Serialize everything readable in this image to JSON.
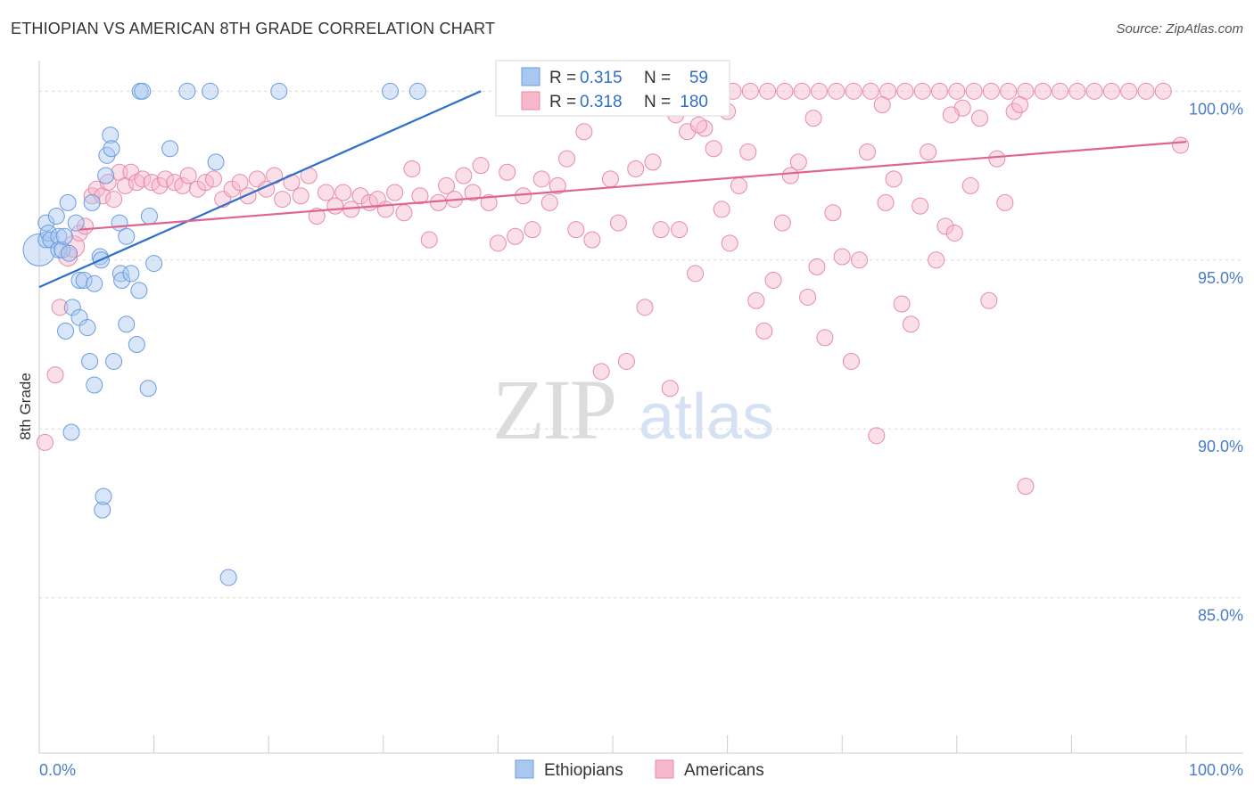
{
  "title": "ETHIOPIAN VS AMERICAN 8TH GRADE CORRELATION CHART",
  "source": "Source: ZipAtlas.com",
  "watermark": {
    "zip": "ZIP",
    "atlas": "atlas"
  },
  "colors": {
    "blue_fill": "#a9c8f0",
    "blue_stroke": "#6b9be0",
    "blue_line": "#2e6fcc",
    "pink_fill": "#f7b8cc",
    "pink_stroke": "#e88aa8",
    "pink_line": "#e0648f",
    "axis_label": "#4a7cc9",
    "grid": "#d9d9d9"
  },
  "legend_box": {
    "rows": [
      {
        "r_label": "R = ",
        "r_value": "0.315",
        "n_label": "N = ",
        "n_value": "59",
        "color": "blue"
      },
      {
        "r_label": "R = ",
        "r_value": "0.318",
        "n_label": "N = ",
        "n_value": "180",
        "color": "pink"
      }
    ]
  },
  "chart_data": {
    "type": "scatter",
    "title": "ETHIOPIAN VS AMERICAN 8TH GRADE CORRELATION CHART",
    "xlabel": "",
    "ylabel": "8th Grade",
    "xlim": [
      0,
      100
    ],
    "ylim": [
      80.4,
      100.8
    ],
    "x_tick_labels": [
      "0.0%",
      "100.0%"
    ],
    "y_ticks": [
      85,
      90,
      95,
      100
    ],
    "y_tick_labels": [
      "85.0%",
      "90.0%",
      "95.0%",
      "100.0%"
    ],
    "grid": true,
    "legend_position": "bottom-center",
    "series": [
      {
        "name": "Ethiopians",
        "color": "blue",
        "r": 0.315,
        "n": 59,
        "trend": {
          "x": [
            0,
            38.5
          ],
          "y": [
            94.2,
            100.0
          ]
        },
        "points": [
          [
            0.0,
            95.3,
            24
          ],
          [
            0.6,
            96.1,
            12
          ],
          [
            0.6,
            95.6,
            10
          ],
          [
            0.8,
            95.8,
            12
          ],
          [
            1.0,
            95.6,
            10
          ],
          [
            1.5,
            96.3,
            10
          ],
          [
            1.7,
            95.7,
            12
          ],
          [
            1.7,
            95.3,
            10
          ],
          [
            2.0,
            95.3,
            10
          ],
          [
            2.2,
            95.7,
            10
          ],
          [
            2.3,
            92.9,
            10
          ],
          [
            2.5,
            96.7,
            10
          ],
          [
            2.6,
            95.2,
            10
          ],
          [
            2.8,
            89.9,
            10
          ],
          [
            2.9,
            93.6,
            10
          ],
          [
            3.2,
            96.1,
            10
          ],
          [
            3.5,
            93.3,
            10
          ],
          [
            3.5,
            94.4,
            10
          ],
          [
            3.9,
            94.4,
            10
          ],
          [
            4.2,
            93.0,
            10
          ],
          [
            4.4,
            92.0,
            10
          ],
          [
            4.6,
            96.7,
            10
          ],
          [
            4.8,
            91.3,
            10
          ],
          [
            4.8,
            94.3,
            10
          ],
          [
            5.3,
            95.1,
            10
          ],
          [
            5.4,
            95.0,
            10
          ],
          [
            5.5,
            87.6,
            10
          ],
          [
            5.6,
            88.0,
            10
          ],
          [
            5.8,
            97.5,
            10
          ],
          [
            5.9,
            98.1,
            10
          ],
          [
            6.2,
            98.7,
            10
          ],
          [
            6.3,
            98.3,
            10
          ],
          [
            6.5,
            92.0,
            10
          ],
          [
            7.0,
            96.1,
            10
          ],
          [
            7.1,
            94.6,
            10
          ],
          [
            7.2,
            94.4,
            10
          ],
          [
            7.6,
            93.1,
            10
          ],
          [
            7.6,
            95.7,
            10
          ],
          [
            8.0,
            94.6,
            10
          ],
          [
            8.5,
            92.5,
            10
          ],
          [
            8.7,
            94.1,
            10
          ],
          [
            8.8,
            100.0,
            10
          ],
          [
            9.0,
            100.0,
            10
          ],
          [
            9.5,
            91.2,
            10
          ],
          [
            9.6,
            96.3,
            10
          ],
          [
            10.0,
            94.9,
            10
          ],
          [
            11.4,
            98.3,
            10
          ],
          [
            12.9,
            100.0,
            10
          ],
          [
            14.9,
            100.0,
            10
          ],
          [
            15.4,
            97.9,
            10
          ],
          [
            16.5,
            85.6,
            10
          ],
          [
            20.9,
            100.0,
            10
          ],
          [
            30.6,
            100.0,
            10
          ],
          [
            33.0,
            100.0,
            10
          ]
        ]
      },
      {
        "name": "Americans",
        "color": "pink",
        "r": 0.318,
        "n": 180,
        "trend": {
          "x": [
            3.5,
            100.0
          ],
          "y": [
            95.9,
            98.5
          ]
        },
        "points": [
          [
            0.5,
            89.6,
            12
          ],
          [
            1.4,
            91.6,
            12
          ],
          [
            1.8,
            93.6,
            12
          ],
          [
            2.5,
            95.1,
            14
          ],
          [
            3.0,
            95.4,
            16
          ],
          [
            3.5,
            95.8,
            12
          ],
          [
            4.0,
            96.0,
            10
          ],
          [
            4.6,
            96.9,
            10
          ],
          [
            5.0,
            97.1,
            12
          ],
          [
            5.5,
            96.9,
            10
          ],
          [
            6.0,
            97.3,
            10
          ],
          [
            6.5,
            96.8,
            12
          ],
          [
            7.0,
            97.6,
            10
          ],
          [
            7.5,
            97.2,
            10
          ],
          [
            8.0,
            97.6,
            10
          ],
          [
            8.5,
            97.3,
            12
          ],
          [
            9.0,
            97.4,
            10
          ],
          [
            9.8,
            97.3,
            10
          ],
          [
            10.5,
            97.2,
            10
          ],
          [
            11.0,
            97.4,
            12
          ],
          [
            11.8,
            97.3,
            10
          ],
          [
            12.5,
            97.2,
            10
          ],
          [
            13.0,
            97.5,
            10
          ],
          [
            13.8,
            97.1,
            10
          ],
          [
            14.5,
            97.3,
            10
          ],
          [
            15.2,
            97.4,
            10
          ],
          [
            16.0,
            96.8,
            10
          ],
          [
            16.8,
            97.1,
            10
          ],
          [
            17.5,
            97.3,
            10
          ],
          [
            18.2,
            96.9,
            10
          ],
          [
            19.0,
            97.4,
            10
          ],
          [
            19.8,
            97.1,
            10
          ],
          [
            20.5,
            97.5,
            10
          ],
          [
            21.2,
            96.8,
            10
          ],
          [
            22.0,
            97.3,
            10
          ],
          [
            22.8,
            96.9,
            10
          ],
          [
            23.5,
            97.5,
            10
          ],
          [
            24.2,
            96.3,
            10
          ],
          [
            25.0,
            97.0,
            10
          ],
          [
            25.8,
            96.6,
            10
          ],
          [
            26.5,
            97.0,
            10
          ],
          [
            27.2,
            96.5,
            10
          ],
          [
            28.0,
            96.9,
            10
          ],
          [
            28.8,
            96.7,
            10
          ],
          [
            29.5,
            96.8,
            10
          ],
          [
            30.2,
            96.5,
            10
          ],
          [
            31.0,
            97.0,
            10
          ],
          [
            31.8,
            96.4,
            10
          ],
          [
            32.5,
            97.7,
            10
          ],
          [
            33.2,
            96.9,
            10
          ],
          [
            34.0,
            95.6,
            10
          ],
          [
            34.8,
            96.7,
            10
          ],
          [
            35.5,
            97.2,
            10
          ],
          [
            36.2,
            96.8,
            10
          ],
          [
            37.0,
            97.5,
            10
          ],
          [
            37.8,
            97.0,
            10
          ],
          [
            38.5,
            97.8,
            10
          ],
          [
            39.2,
            96.7,
            10
          ],
          [
            40.0,
            95.5,
            10
          ],
          [
            40.8,
            97.6,
            10
          ],
          [
            41.5,
            95.7,
            10
          ],
          [
            42.2,
            96.9,
            10
          ],
          [
            43.0,
            95.9,
            10
          ],
          [
            43.8,
            97.4,
            10
          ],
          [
            44.5,
            96.7,
            10
          ],
          [
            45.2,
            97.2,
            10
          ],
          [
            46.0,
            98.0,
            10
          ],
          [
            46.8,
            95.9,
            10
          ],
          [
            47.5,
            98.8,
            10
          ],
          [
            48.2,
            95.6,
            10
          ],
          [
            49.0,
            91.7,
            10
          ],
          [
            49.8,
            97.4,
            10
          ],
          [
            50.5,
            96.1,
            10
          ],
          [
            51.2,
            92.0,
            10
          ],
          [
            52.0,
            97.7,
            10
          ],
          [
            52.8,
            93.6,
            10
          ],
          [
            53.5,
            97.9,
            10
          ],
          [
            54.2,
            95.9,
            10
          ],
          [
            55.0,
            91.2,
            10
          ],
          [
            55.8,
            95.9,
            10
          ],
          [
            56.5,
            98.8,
            10
          ],
          [
            57.2,
            94.6,
            10
          ],
          [
            58.0,
            98.9,
            10
          ],
          [
            58.8,
            98.3,
            10
          ],
          [
            59.5,
            96.5,
            10
          ],
          [
            60.2,
            95.5,
            10
          ],
          [
            61.0,
            97.2,
            10
          ],
          [
            61.8,
            98.2,
            10
          ],
          [
            62.5,
            93.8,
            10
          ],
          [
            63.2,
            92.9,
            10
          ],
          [
            64.0,
            94.4,
            10
          ],
          [
            64.8,
            96.1,
            10
          ],
          [
            65.5,
            97.5,
            10
          ],
          [
            66.2,
            97.9,
            10
          ],
          [
            67.0,
            93.9,
            10
          ],
          [
            67.8,
            94.8,
            10
          ],
          [
            68.5,
            92.7,
            10
          ],
          [
            69.2,
            96.4,
            10
          ],
          [
            70.0,
            95.1,
            10
          ],
          [
            70.8,
            92.0,
            10
          ],
          [
            71.5,
            95.0,
            10
          ],
          [
            72.2,
            98.2,
            10
          ],
          [
            73.0,
            89.8,
            10
          ],
          [
            73.8,
            96.7,
            10
          ],
          [
            74.5,
            97.4,
            10
          ],
          [
            75.2,
            93.7,
            10
          ],
          [
            76.0,
            93.1,
            10
          ],
          [
            76.8,
            96.6,
            10
          ],
          [
            77.5,
            98.2,
            10
          ],
          [
            78.2,
            95.0,
            10
          ],
          [
            79.0,
            96.0,
            10
          ],
          [
            79.8,
            95.8,
            10
          ],
          [
            80.5,
            99.5,
            10
          ],
          [
            81.2,
            97.2,
            10
          ],
          [
            82.0,
            99.2,
            10
          ],
          [
            82.8,
            93.8,
            10
          ],
          [
            83.5,
            98.0,
            10
          ],
          [
            84.2,
            96.7,
            10
          ],
          [
            85.0,
            99.4,
            10
          ],
          [
            86.0,
            88.3,
            10
          ],
          [
            99.5,
            98.4,
            10
          ],
          [
            59.0,
            100.0,
            10
          ],
          [
            60.5,
            100.0,
            10
          ],
          [
            62.0,
            100.0,
            10
          ],
          [
            63.5,
            100.0,
            10
          ],
          [
            65.0,
            100.0,
            10
          ],
          [
            66.5,
            100.0,
            10
          ],
          [
            68.0,
            100.0,
            10
          ],
          [
            69.5,
            100.0,
            10
          ],
          [
            71.0,
            100.0,
            10
          ],
          [
            72.5,
            100.0,
            10
          ],
          [
            74.0,
            100.0,
            10
          ],
          [
            75.5,
            100.0,
            10
          ],
          [
            77.0,
            100.0,
            10
          ],
          [
            78.5,
            100.0,
            10
          ],
          [
            80.0,
            100.0,
            10
          ],
          [
            81.5,
            100.0,
            10
          ],
          [
            83.0,
            100.0,
            10
          ],
          [
            84.5,
            100.0,
            10
          ],
          [
            86.0,
            100.0,
            10
          ],
          [
            87.5,
            100.0,
            10
          ],
          [
            89.0,
            100.0,
            10
          ],
          [
            90.5,
            100.0,
            10
          ],
          [
            92.0,
            100.0,
            10
          ],
          [
            93.5,
            100.0,
            10
          ],
          [
            95.0,
            100.0,
            10
          ],
          [
            96.5,
            100.0,
            10
          ],
          [
            98.0,
            100.0,
            10
          ],
          [
            55.5,
            99.3,
            10
          ],
          [
            57.5,
            99.0,
            10
          ],
          [
            60.0,
            99.4,
            10
          ],
          [
            67.5,
            99.2,
            10
          ],
          [
            73.5,
            99.6,
            10
          ],
          [
            79.5,
            99.3,
            10
          ],
          [
            85.5,
            99.6,
            10
          ]
        ]
      }
    ]
  }
}
